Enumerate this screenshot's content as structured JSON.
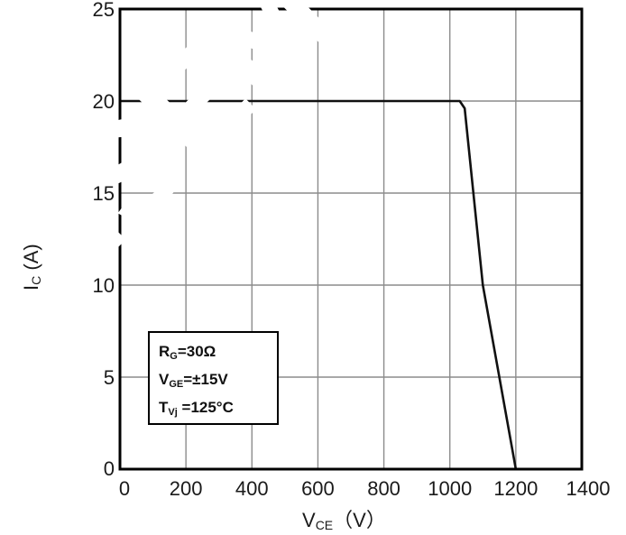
{
  "chart_data": {
    "type": "line",
    "xlim": [
      0,
      1400
    ],
    "ylim": [
      0,
      25
    ],
    "x_ticks": [
      "0",
      "200",
      "400",
      "600",
      "800",
      "1000",
      "1200",
      "1400"
    ],
    "y_ticks": [
      "0",
      "5",
      "10",
      "15",
      "20",
      "25"
    ],
    "xlabel": {
      "main": "V",
      "sub": "CE",
      "unit": "（V）"
    },
    "ylabel": {
      "main": "I",
      "sub": "C",
      "unit": " (A)"
    },
    "grid": true,
    "series": [
      {
        "x": [
          0,
          1030,
          1045,
          1100,
          1200
        ],
        "y": [
          20,
          20,
          19.6,
          10,
          0
        ]
      }
    ],
    "annotation": {
      "lines": [
        {
          "main": "R",
          "sub": "G",
          "rest": "=30Ω"
        },
        {
          "main": "V",
          "sub": "GE",
          "rest": "=±15V"
        },
        {
          "main": "T",
          "sub": "Vj",
          "rest": " =125°C"
        }
      ]
    },
    "watermark": "HSEM",
    "colors": {
      "line": "#111111",
      "grid": "#8c8c8c",
      "frame": "#000000",
      "watermark": "#ffffff"
    }
  }
}
